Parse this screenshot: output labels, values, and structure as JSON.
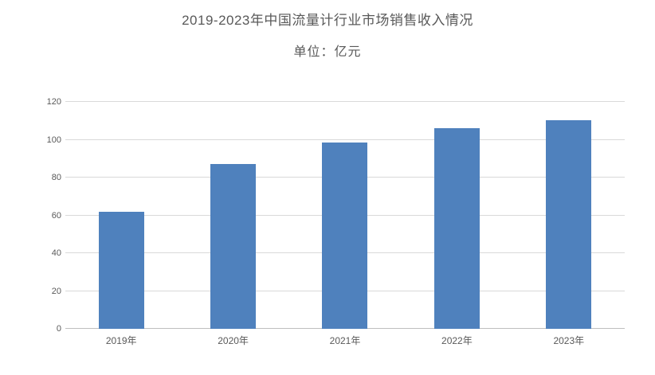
{
  "page": {
    "title": "2019-2023年中国流量计行业市场销售收入情况",
    "unit_label": "单位：亿元"
  },
  "chart_data": {
    "type": "bar",
    "title": "2019-2023年中国流量计行业市场销售收入情况",
    "subtitle": "单位：亿元",
    "unit": "亿元",
    "categories": [
      "2019年",
      "2020年",
      "2021年",
      "2022年",
      "2023年"
    ],
    "values": [
      62,
      87,
      98.5,
      106,
      110.5
    ],
    "xlabel": "",
    "ylabel": "",
    "ylim": [
      0,
      120
    ],
    "yticks": [
      0,
      20,
      40,
      60,
      80,
      100,
      120
    ],
    "grid": true,
    "legend": false,
    "colors": {
      "bar": "#4f81bd",
      "gridline": "#d9d9d9",
      "axis_line": "#bfbfbf",
      "text": "#595959",
      "background": "#ffffff"
    }
  }
}
